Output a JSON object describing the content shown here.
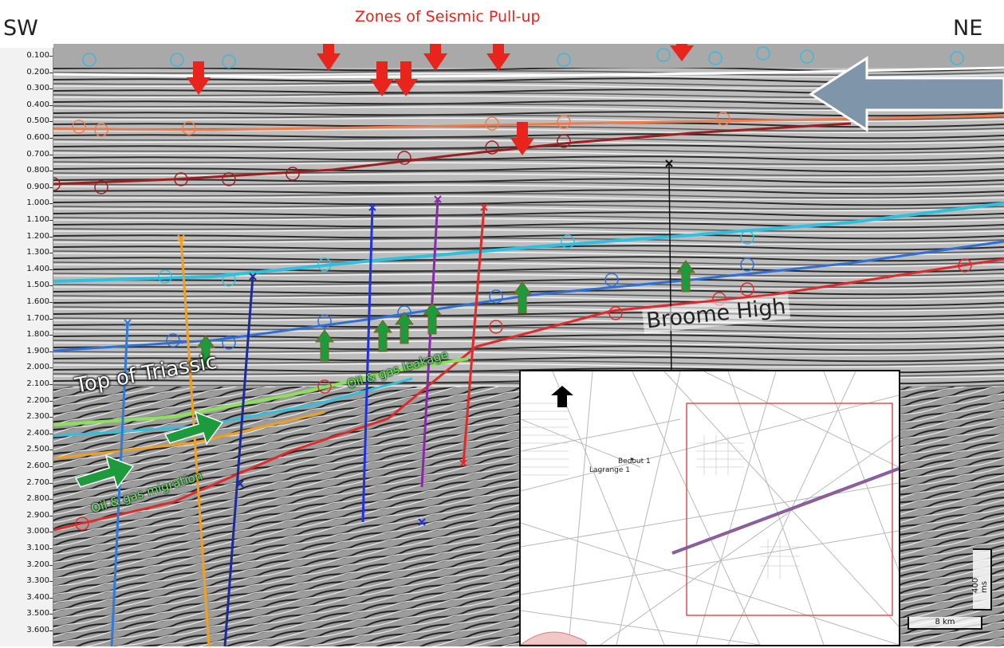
{
  "header": {
    "title": "Zones of Seismic Pull-up",
    "left_dir": "SW",
    "right_dir": "NE"
  },
  "axis": {
    "ticks": [
      "0.100",
      "0.200",
      "0.300",
      "0.400",
      "0.500",
      "0.600",
      "0.700",
      "0.800",
      "0.900",
      "1.000",
      "1.100",
      "1.200",
      "1.300",
      "1.400",
      "1.500",
      "1.600",
      "1.700",
      "1.800",
      "1.900",
      "2.000",
      "2.100",
      "2.200",
      "2.300",
      "2.400",
      "2.500",
      "2.600",
      "2.700",
      "2.800",
      "2.900",
      "3.000",
      "3.100",
      "3.200",
      "3.300",
      "3.400",
      "3.500",
      "3.600"
    ]
  },
  "annotations": {
    "broome_high": "Broome High",
    "top_triassic": "Top of Triassic",
    "oil_gas_leakage": "Oil & gas leakage",
    "oil_gas_migration": "Oil & gas migration"
  },
  "inset": {
    "well_1": "Bedout 1",
    "well_2": "Lagrange 1",
    "scale_vertical": "400 ms",
    "scale_horizontal": "8 km"
  },
  "colors": {
    "arrow_red": "#e8241c",
    "arrow_green": "#1c9a3c",
    "big_arrow": "#7f95aa",
    "horizon_orange": "#f07b4a",
    "horizon_darkred": "#9b1f1f",
    "horizon_cyan": "#2fc0e0",
    "horizon_blue": "#2e6fd8",
    "horizon_red": "#e02a2a",
    "horizon_green": "#8de05a",
    "fault_yellow": "#f0a020",
    "fault_navy": "#1c2a9a",
    "fault_purple": "#8a2aa8"
  }
}
